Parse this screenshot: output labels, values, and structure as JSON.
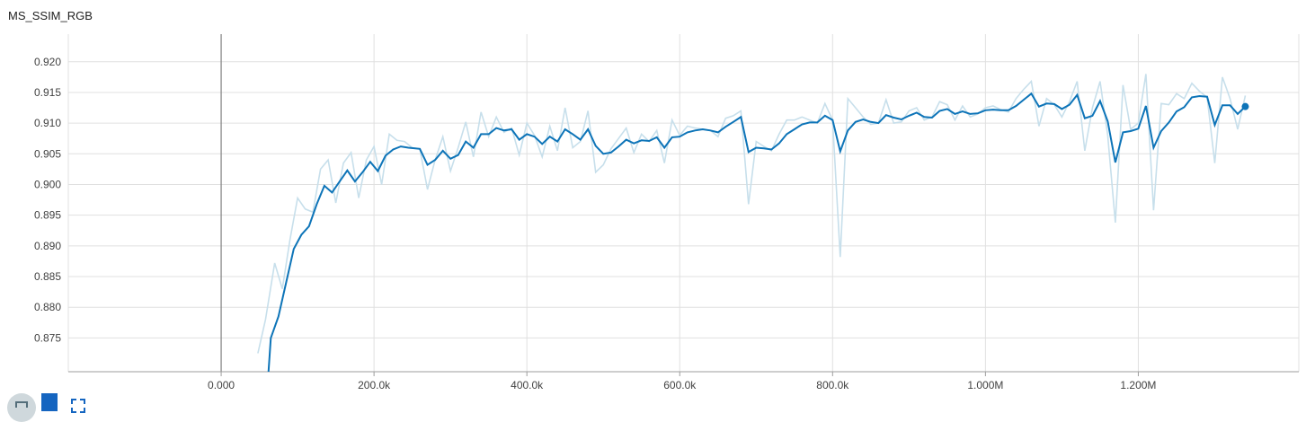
{
  "card": {
    "title": "MS_SSIM_RGB"
  },
  "toolbar": {
    "expand_icon": "fullscreen-icon",
    "data_icon": "list-icon",
    "fit_icon": "fit-domain-icon"
  },
  "colors": {
    "raw_line": "#c7dfeb",
    "smoothed_line": "#0d74b8",
    "grid": "#e0e0e0",
    "zero_axis": "#808080"
  },
  "chart_data": {
    "type": "line",
    "title": "MS_SSIM_RGB",
    "xlabel": "",
    "ylabel": "",
    "xlim": [
      -200000,
      1410000
    ],
    "ylim": [
      0.8695,
      0.9245
    ],
    "x_ticks": [
      0,
      200000,
      400000,
      600000,
      800000,
      1000000,
      1200000
    ],
    "x_tick_labels": [
      "0.000",
      "200.0k",
      "400.0k",
      "600.0k",
      "800.0k",
      "1.000M",
      "1.200M"
    ],
    "y_ticks": [
      0.875,
      0.88,
      0.885,
      0.89,
      0.895,
      0.9,
      0.905,
      0.91,
      0.915,
      0.92
    ],
    "y_tick_labels": [
      "0.875",
      "0.880",
      "0.885",
      "0.890",
      "0.895",
      "0.900",
      "0.905",
      "0.910",
      "0.915",
      "0.920"
    ],
    "grid": true,
    "legend": "none",
    "series": [
      {
        "role": "raw",
        "points": [
          [
            48000,
            0.8725
          ],
          [
            58000,
            0.878
          ],
          [
            70000,
            0.8872
          ],
          [
            80000,
            0.883
          ],
          [
            90000,
            0.891
          ],
          [
            100000,
            0.8978
          ],
          [
            110000,
            0.896
          ],
          [
            120000,
            0.8955
          ],
          [
            130000,
            0.9025
          ],
          [
            140000,
            0.904
          ],
          [
            150000,
            0.897
          ],
          [
            160000,
            0.9035
          ],
          [
            170000,
            0.9052
          ],
          [
            180000,
            0.8978
          ],
          [
            190000,
            0.904
          ],
          [
            200000,
            0.9062
          ],
          [
            210000,
            0.9
          ],
          [
            220000,
            0.9082
          ],
          [
            230000,
            0.9072
          ],
          [
            240000,
            0.907
          ],
          [
            250000,
            0.906
          ],
          [
            260000,
            0.9058
          ],
          [
            270000,
            0.8992
          ],
          [
            280000,
            0.904
          ],
          [
            290000,
            0.9078
          ],
          [
            300000,
            0.9022
          ],
          [
            310000,
            0.906
          ],
          [
            320000,
            0.9102
          ],
          [
            330000,
            0.9045
          ],
          [
            340000,
            0.9118
          ],
          [
            350000,
            0.9078
          ],
          [
            360000,
            0.911
          ],
          [
            370000,
            0.9085
          ],
          [
            380000,
            0.9092
          ],
          [
            390000,
            0.9048
          ],
          [
            400000,
            0.91
          ],
          [
            410000,
            0.908
          ],
          [
            420000,
            0.9045
          ],
          [
            430000,
            0.9095
          ],
          [
            440000,
            0.9055
          ],
          [
            450000,
            0.9125
          ],
          [
            460000,
            0.906
          ],
          [
            470000,
            0.907
          ],
          [
            480000,
            0.912
          ],
          [
            490000,
            0.902
          ],
          [
            500000,
            0.9032
          ],
          [
            510000,
            0.9058
          ],
          [
            520000,
            0.9075
          ],
          [
            530000,
            0.9092
          ],
          [
            540000,
            0.9052
          ],
          [
            550000,
            0.9082
          ],
          [
            560000,
            0.907
          ],
          [
            570000,
            0.9088
          ],
          [
            580000,
            0.9035
          ],
          [
            590000,
            0.9105
          ],
          [
            600000,
            0.908
          ],
          [
            610000,
            0.9095
          ],
          [
            620000,
            0.9092
          ],
          [
            630000,
            0.909
          ],
          [
            640000,
            0.9088
          ],
          [
            650000,
            0.9078
          ],
          [
            660000,
            0.9108
          ],
          [
            670000,
            0.9112
          ],
          [
            680000,
            0.912
          ],
          [
            690000,
            0.8968
          ],
          [
            700000,
            0.907
          ],
          [
            710000,
            0.9062
          ],
          [
            720000,
            0.9055
          ],
          [
            730000,
            0.9082
          ],
          [
            740000,
            0.9105
          ],
          [
            750000,
            0.9105
          ],
          [
            760000,
            0.911
          ],
          [
            770000,
            0.9105
          ],
          [
            780000,
            0.91
          ],
          [
            790000,
            0.9132
          ],
          [
            800000,
            0.9105
          ],
          [
            810000,
            0.8882
          ],
          [
            820000,
            0.914
          ],
          [
            830000,
            0.9125
          ],
          [
            840000,
            0.911
          ],
          [
            850000,
            0.9098
          ],
          [
            860000,
            0.91
          ],
          [
            870000,
            0.9138
          ],
          [
            880000,
            0.91
          ],
          [
            890000,
            0.9102
          ],
          [
            900000,
            0.912
          ],
          [
            910000,
            0.9125
          ],
          [
            920000,
            0.9105
          ],
          [
            930000,
            0.911
          ],
          [
            940000,
            0.9135
          ],
          [
            950000,
            0.913
          ],
          [
            960000,
            0.9105
          ],
          [
            970000,
            0.9128
          ],
          [
            980000,
            0.911
          ],
          [
            990000,
            0.9115
          ],
          [
            1000000,
            0.9125
          ],
          [
            1010000,
            0.9128
          ],
          [
            1020000,
            0.9122
          ],
          [
            1030000,
            0.9118
          ],
          [
            1040000,
            0.914
          ],
          [
            1050000,
            0.9155
          ],
          [
            1060000,
            0.9168
          ],
          [
            1070000,
            0.9095
          ],
          [
            1080000,
            0.914
          ],
          [
            1090000,
            0.913
          ],
          [
            1100000,
            0.911
          ],
          [
            1110000,
            0.9135
          ],
          [
            1120000,
            0.9168
          ],
          [
            1130000,
            0.9055
          ],
          [
            1140000,
            0.9125
          ],
          [
            1150000,
            0.9168
          ],
          [
            1160000,
            0.908
          ],
          [
            1170000,
            0.8938
          ],
          [
            1180000,
            0.9162
          ],
          [
            1190000,
            0.909
          ],
          [
            1200000,
            0.91
          ],
          [
            1210000,
            0.918
          ],
          [
            1220000,
            0.8958
          ],
          [
            1230000,
            0.9132
          ],
          [
            1240000,
            0.913
          ],
          [
            1250000,
            0.9148
          ],
          [
            1260000,
            0.914
          ],
          [
            1270000,
            0.9165
          ],
          [
            1280000,
            0.9152
          ],
          [
            1290000,
            0.9142
          ],
          [
            1300000,
            0.9035
          ],
          [
            1310000,
            0.9175
          ],
          [
            1320000,
            0.914
          ],
          [
            1330000,
            0.909
          ],
          [
            1340000,
            0.9145
          ]
        ]
      },
      {
        "role": "smoothed",
        "points": [
          [
            60000,
            0.866
          ],
          [
            65000,
            0.875
          ],
          [
            75000,
            0.8785
          ],
          [
            85000,
            0.884
          ],
          [
            95000,
            0.8895
          ],
          [
            105000,
            0.8918
          ],
          [
            115000,
            0.8932
          ],
          [
            125000,
            0.8968
          ],
          [
            135000,
            0.8998
          ],
          [
            145000,
            0.8987
          ],
          [
            155000,
            0.9005
          ],
          [
            165000,
            0.9023
          ],
          [
            175000,
            0.9005
          ],
          [
            185000,
            0.902
          ],
          [
            195000,
            0.9037
          ],
          [
            205000,
            0.9022
          ],
          [
            215000,
            0.9047
          ],
          [
            225000,
            0.9057
          ],
          [
            235000,
            0.9062
          ],
          [
            245000,
            0.906
          ],
          [
            260000,
            0.9058
          ],
          [
            270000,
            0.9032
          ],
          [
            280000,
            0.904
          ],
          [
            290000,
            0.9055
          ],
          [
            300000,
            0.9042
          ],
          [
            310000,
            0.9048
          ],
          [
            320000,
            0.907
          ],
          [
            330000,
            0.906
          ],
          [
            340000,
            0.9082
          ],
          [
            350000,
            0.9082
          ],
          [
            360000,
            0.9092
          ],
          [
            370000,
            0.9088
          ],
          [
            380000,
            0.909
          ],
          [
            390000,
            0.9073
          ],
          [
            400000,
            0.9082
          ],
          [
            410000,
            0.9078
          ],
          [
            420000,
            0.9066
          ],
          [
            430000,
            0.9078
          ],
          [
            440000,
            0.907
          ],
          [
            450000,
            0.909
          ],
          [
            460000,
            0.9082
          ],
          [
            470000,
            0.9073
          ],
          [
            480000,
            0.909
          ],
          [
            490000,
            0.9063
          ],
          [
            500000,
            0.905
          ],
          [
            510000,
            0.9052
          ],
          [
            520000,
            0.9062
          ],
          [
            530000,
            0.9073
          ],
          [
            540000,
            0.9067
          ],
          [
            550000,
            0.9072
          ],
          [
            560000,
            0.9071
          ],
          [
            570000,
            0.9077
          ],
          [
            580000,
            0.906
          ],
          [
            590000,
            0.9077
          ],
          [
            600000,
            0.9078
          ],
          [
            610000,
            0.9085
          ],
          [
            620000,
            0.9088
          ],
          [
            630000,
            0.909
          ],
          [
            640000,
            0.9088
          ],
          [
            650000,
            0.9085
          ],
          [
            660000,
            0.9094
          ],
          [
            670000,
            0.9102
          ],
          [
            680000,
            0.911
          ],
          [
            690000,
            0.9053
          ],
          [
            700000,
            0.906
          ],
          [
            710000,
            0.9059
          ],
          [
            720000,
            0.9057
          ],
          [
            730000,
            0.9067
          ],
          [
            740000,
            0.9082
          ],
          [
            750000,
            0.909
          ],
          [
            760000,
            0.9098
          ],
          [
            770000,
            0.9101
          ],
          [
            780000,
            0.9101
          ],
          [
            790000,
            0.9112
          ],
          [
            800000,
            0.9105
          ],
          [
            810000,
            0.9054
          ],
          [
            820000,
            0.9088
          ],
          [
            830000,
            0.9102
          ],
          [
            840000,
            0.9106
          ],
          [
            850000,
            0.9102
          ],
          [
            860000,
            0.91
          ],
          [
            870000,
            0.9113
          ],
          [
            880000,
            0.9109
          ],
          [
            890000,
            0.9106
          ],
          [
            900000,
            0.9112
          ],
          [
            910000,
            0.9117
          ],
          [
            920000,
            0.911
          ],
          [
            930000,
            0.9109
          ],
          [
            940000,
            0.912
          ],
          [
            950000,
            0.9123
          ],
          [
            960000,
            0.9115
          ],
          [
            970000,
            0.9119
          ],
          [
            980000,
            0.9115
          ],
          [
            990000,
            0.9116
          ],
          [
            1000000,
            0.9121
          ],
          [
            1010000,
            0.9122
          ],
          [
            1020000,
            0.9121
          ],
          [
            1030000,
            0.9121
          ],
          [
            1040000,
            0.9128
          ],
          [
            1050000,
            0.9138
          ],
          [
            1060000,
            0.9148
          ],
          [
            1070000,
            0.9127
          ],
          [
            1080000,
            0.9132
          ],
          [
            1090000,
            0.9131
          ],
          [
            1100000,
            0.9123
          ],
          [
            1110000,
            0.913
          ],
          [
            1120000,
            0.9146
          ],
          [
            1130000,
            0.9108
          ],
          [
            1140000,
            0.9112
          ],
          [
            1150000,
            0.9136
          ],
          [
            1160000,
            0.9103
          ],
          [
            1170000,
            0.9036
          ],
          [
            1180000,
            0.9085
          ],
          [
            1190000,
            0.9087
          ],
          [
            1200000,
            0.9091
          ],
          [
            1210000,
            0.9128
          ],
          [
            1220000,
            0.906
          ],
          [
            1230000,
            0.9087
          ],
          [
            1240000,
            0.9101
          ],
          [
            1250000,
            0.9119
          ],
          [
            1260000,
            0.9126
          ],
          [
            1270000,
            0.9142
          ],
          [
            1280000,
            0.9144
          ],
          [
            1290000,
            0.9143
          ],
          [
            1300000,
            0.9097
          ],
          [
            1310000,
            0.9129
          ],
          [
            1320000,
            0.9129
          ],
          [
            1330000,
            0.9115
          ],
          [
            1340000,
            0.9127
          ]
        ]
      }
    ]
  }
}
